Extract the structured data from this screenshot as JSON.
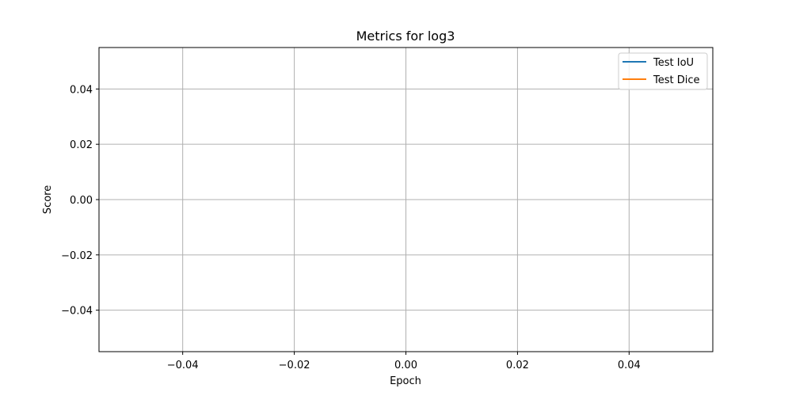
{
  "chart_data": {
    "type": "line",
    "title": "Metrics for log3",
    "xlabel": "Epoch",
    "ylabel": "Score",
    "xlim": [
      -0.055,
      0.055
    ],
    "ylim": [
      -0.055,
      0.055
    ],
    "xticks": [
      -0.04,
      -0.02,
      0.0,
      0.02,
      0.04
    ],
    "xtick_labels": [
      "−0.04",
      "−0.02",
      "0.00",
      "0.02",
      "0.04"
    ],
    "yticks": [
      -0.04,
      -0.02,
      0.0,
      0.02,
      0.04
    ],
    "ytick_labels": [
      "−0.04",
      "−0.02",
      "0.00",
      "0.02",
      "0.04"
    ],
    "grid": true,
    "legend_position": "top-right",
    "series": [
      {
        "name": "Test IoU",
        "color": "#1f77b4",
        "x": [],
        "y": []
      },
      {
        "name": "Test Dice",
        "color": "#ff7f0e",
        "x": [],
        "y": []
      }
    ]
  }
}
